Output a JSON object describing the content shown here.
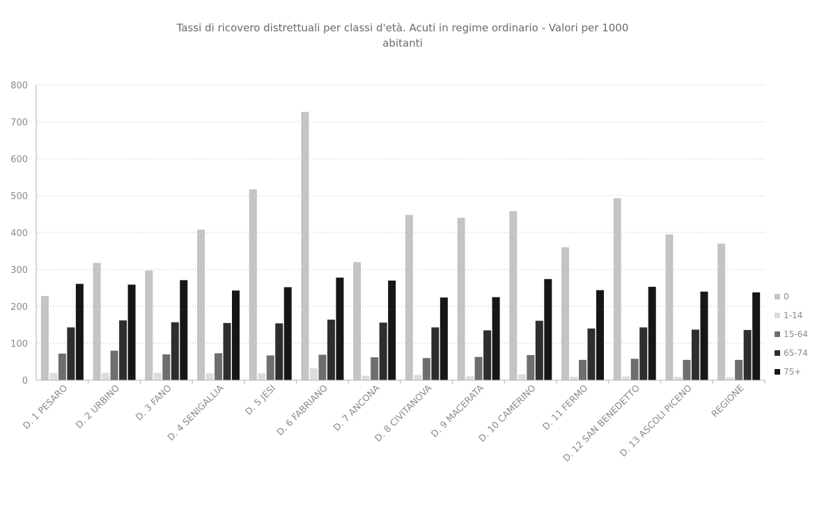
{
  "chart_data": {
    "type": "bar",
    "title": "Tassi di ricovero distrettuali per classi d'età. Acuti in regime ordinario - Valori per 1000 abitanti",
    "title_lines": [
      "Tassi di ricovero distrettuali per classi d'età. Acuti in regime ordinario - Valori per 1000",
      "abitanti"
    ],
    "xlabel": "",
    "ylabel": "",
    "ylim": [
      0,
      800
    ],
    "yticks": [
      0,
      100,
      200,
      300,
      400,
      500,
      600,
      700,
      800
    ],
    "grid": true,
    "legend_position": "right",
    "categories": [
      "D. 1 PESARO",
      "D. 2 URBINO",
      "D. 3 FANO",
      "D. 4 SENIGALLIA",
      "D. 5 JESI",
      "D. 6 FABRIANO",
      "D. 7 ANCONA",
      "D. 8 CIVITANOVA",
      "D. 9 MACERATA",
      "D. 10 CAMERINO",
      "D. 11 FERMO",
      "D. 12 SAN BENEDETTO",
      "D. 13 ASCOLI PICENO",
      "REGIONE"
    ],
    "series": [
      {
        "name": "0",
        "color": "#c4c4c4",
        "values": [
          228,
          318,
          297,
          408,
          517,
          727,
          320,
          448,
          440,
          458,
          360,
          493,
          395,
          370
        ]
      },
      {
        "name": "1-14",
        "color": "#dcdcdc",
        "values": [
          20,
          20,
          20,
          19,
          19,
          32,
          12,
          14,
          11,
          16,
          9,
          10,
          9,
          8
        ]
      },
      {
        "name": "15-64",
        "color": "#6e6e6e",
        "values": [
          72,
          80,
          70,
          73,
          67,
          69,
          62,
          60,
          63,
          68,
          55,
          58,
          55,
          55
        ]
      },
      {
        "name": "65-74",
        "color": "#2e2e2e",
        "values": [
          143,
          162,
          157,
          155,
          154,
          164,
          156,
          143,
          135,
          161,
          140,
          143,
          137,
          136
        ]
      },
      {
        "name": "75+",
        "color": "#161616",
        "values": [
          261,
          259,
          271,
          243,
          252,
          278,
          270,
          224,
          225,
          274,
          244,
          253,
          240,
          238
        ]
      }
    ]
  }
}
